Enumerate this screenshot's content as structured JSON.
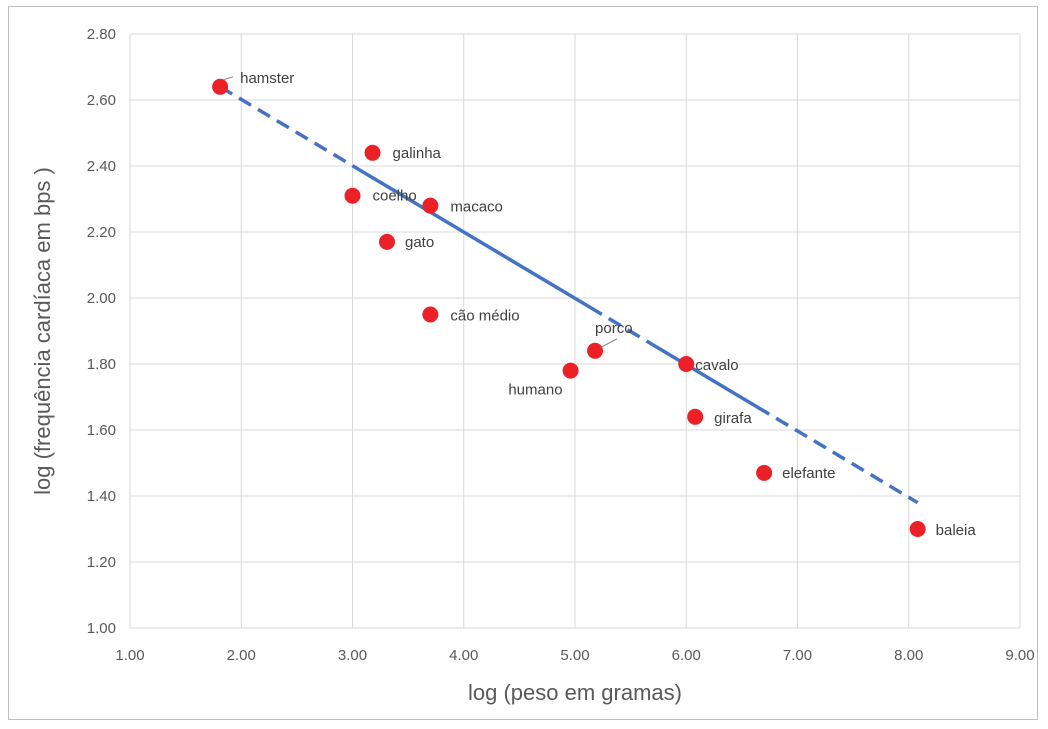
{
  "chart_data": {
    "type": "scatter",
    "xlabel": "log (peso em gramas)",
    "ylabel": "log (frequência cardíaca em bps )",
    "xlim": [
      1.0,
      9.0
    ],
    "ylim": [
      1.0,
      2.8
    ],
    "x_ticks": [
      "1.00",
      "2.00",
      "3.00",
      "4.00",
      "5.00",
      "6.00",
      "7.00",
      "8.00",
      "9.00"
    ],
    "y_ticks": [
      "1.00",
      "1.20",
      "1.40",
      "1.60",
      "1.80",
      "2.00",
      "2.20",
      "2.40",
      "2.60",
      "2.80"
    ],
    "grid": true,
    "points": [
      {
        "label": "hamster",
        "x": 1.81,
        "y": 2.64
      },
      {
        "label": "galinha",
        "x": 3.18,
        "y": 2.44
      },
      {
        "label": "coelho",
        "x": 3.0,
        "y": 2.31
      },
      {
        "label": "macaco",
        "x": 3.7,
        "y": 2.28
      },
      {
        "label": "gato",
        "x": 3.31,
        "y": 2.17
      },
      {
        "label": "cão médio",
        "x": 3.7,
        "y": 1.95
      },
      {
        "label": "porco",
        "x": 5.18,
        "y": 1.84
      },
      {
        "label": "humano",
        "x": 4.96,
        "y": 1.78
      },
      {
        "label": "cavalo",
        "x": 6.0,
        "y": 1.8
      },
      {
        "label": "girafa",
        "x": 6.08,
        "y": 1.64
      },
      {
        "label": "elefante",
        "x": 6.7,
        "y": 1.47
      },
      {
        "label": "baleia",
        "x": 8.08,
        "y": 1.3
      }
    ],
    "trendline": {
      "x": [
        1.81,
        8.08
      ],
      "y": [
        2.64,
        1.38
      ],
      "style": "dashed ends, solid middle"
    },
    "colors": {
      "points": "#ec2027",
      "trendline": "#4472c4",
      "grid": "#d9d9d9"
    }
  }
}
